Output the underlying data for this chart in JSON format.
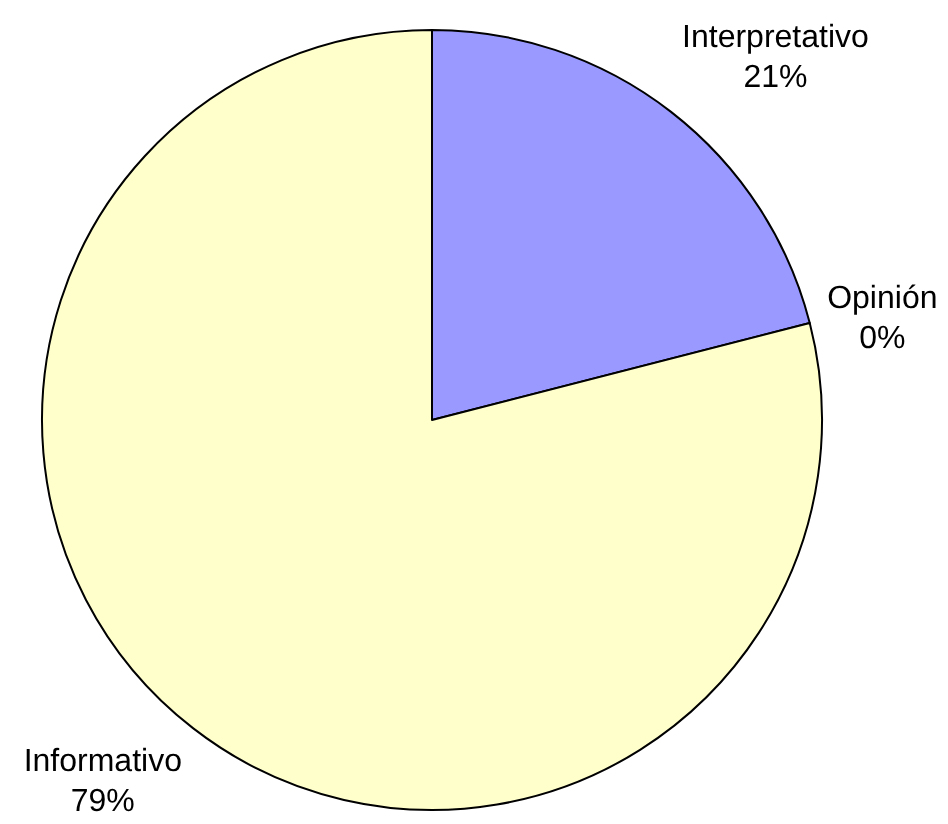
{
  "chart_data": {
    "type": "pie",
    "categories": [
      "Interpretativo",
      "Opinión",
      "Informativo"
    ],
    "values": [
      21,
      0,
      79
    ],
    "colors": [
      "#9999ff",
      null,
      "#ffffcc"
    ],
    "value_labels": [
      "21%",
      "0%",
      "79%"
    ]
  }
}
